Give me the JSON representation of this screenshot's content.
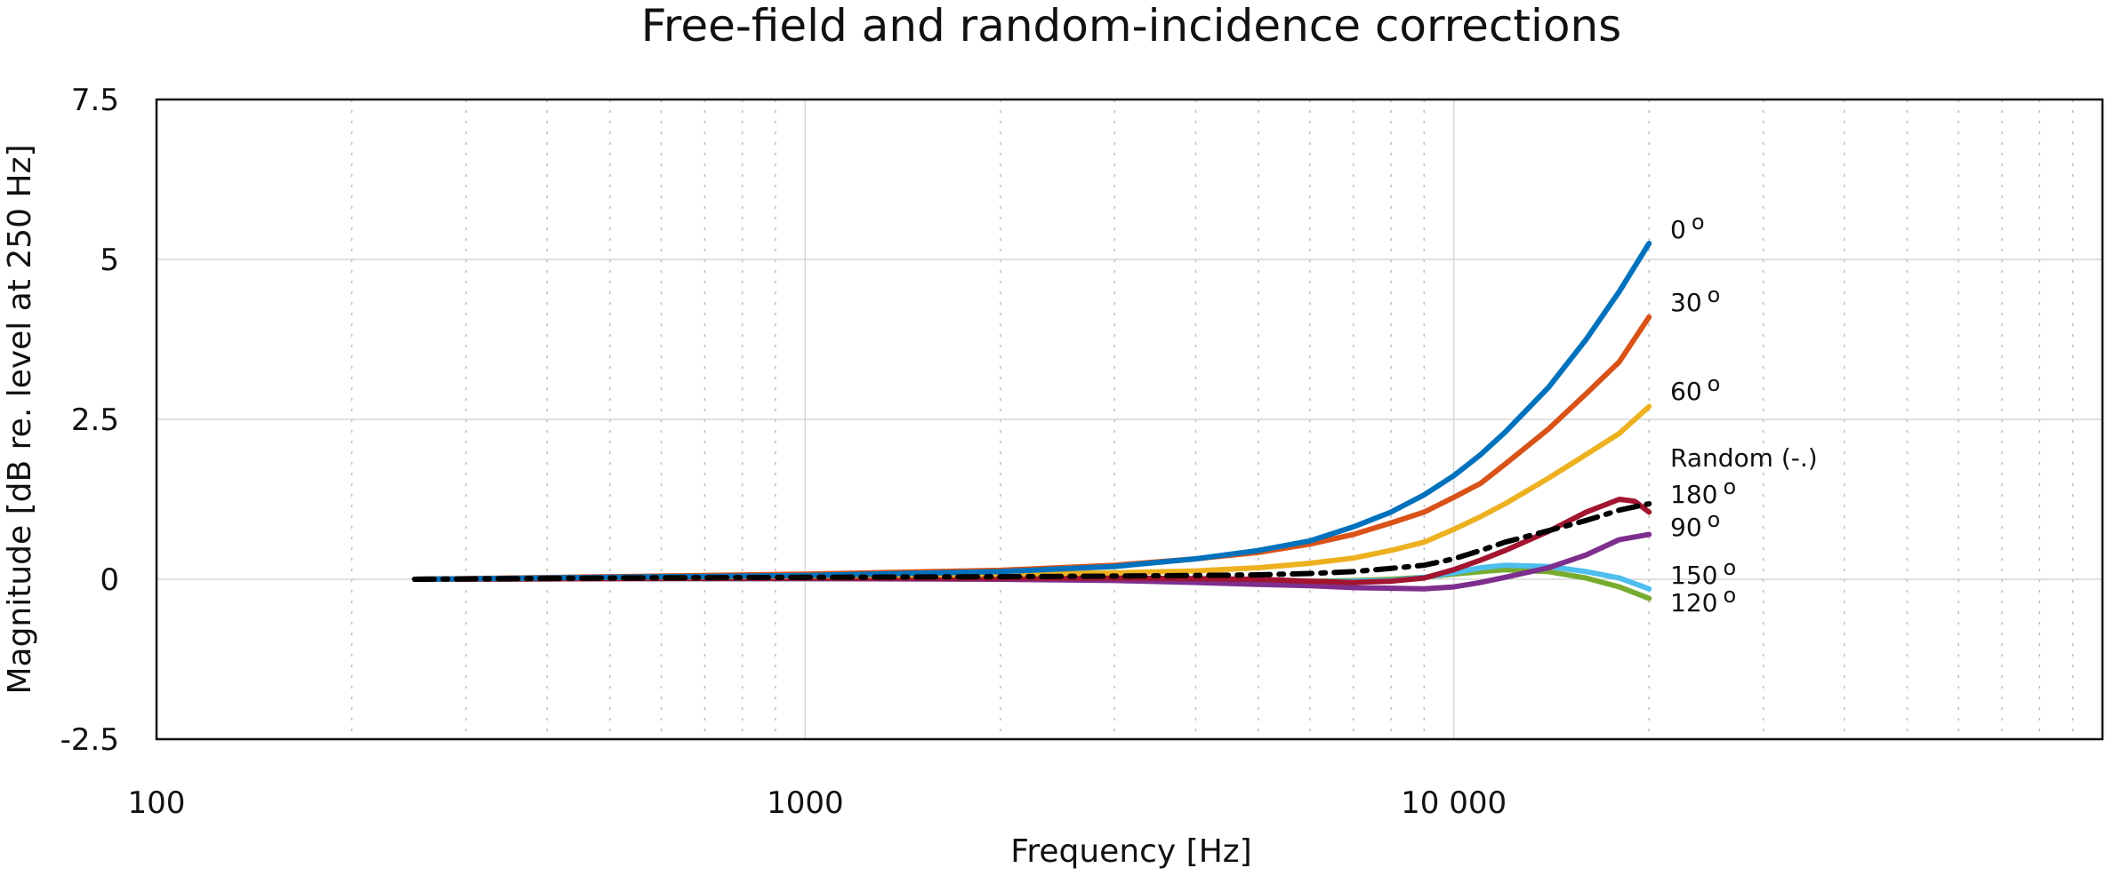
{
  "chart_data": {
    "type": "line",
    "title": "Free-field and random-incidence corrections",
    "xlabel": "Frequency [Hz]",
    "ylabel": "Magnitude [dB re. level at 250 Hz]",
    "xscale": "log",
    "xlim": [
      100,
      100000
    ],
    "ylim": [
      -2.5,
      7.5
    ],
    "xticks": [
      {
        "value": 100,
        "label": "100"
      },
      {
        "value": 1000,
        "label": "1000"
      },
      {
        "value": 10000,
        "label": "10 000"
      }
    ],
    "yticks": [
      {
        "value": 7.5,
        "label": "7.5"
      },
      {
        "value": 5,
        "label": "5"
      },
      {
        "value": 2.5,
        "label": "2.5"
      },
      {
        "value": 0,
        "label": "0"
      },
      {
        "value": -2.5,
        "label": "-2.5"
      }
    ],
    "grid": true,
    "series": [
      {
        "name": "0°",
        "label": "0",
        "deg": "o",
        "color": "#0072BD",
        "dash": "solid",
        "x": [
          250,
          500,
          1000,
          2000,
          3000,
          4000,
          5000,
          6000,
          7000,
          8000,
          9000,
          10000,
          11000,
          12000,
          14000,
          16000,
          18000,
          20000
        ],
        "y": [
          0,
          0.03,
          0.06,
          0.12,
          0.2,
          0.32,
          0.45,
          0.6,
          0.82,
          1.05,
          1.32,
          1.62,
          1.95,
          2.3,
          3.0,
          3.75,
          4.5,
          5.25
        ]
      },
      {
        "name": "30°",
        "label": "30",
        "deg": "o",
        "color": "#D95319",
        "dash": "solid",
        "x": [
          250,
          500,
          1000,
          2000,
          3000,
          4000,
          5000,
          6000,
          7000,
          8000,
          9000,
          10000,
          11000,
          12000,
          14000,
          16000,
          18000,
          20000
        ],
        "y": [
          0,
          0.04,
          0.08,
          0.14,
          0.22,
          0.32,
          0.42,
          0.55,
          0.7,
          0.88,
          1.05,
          1.28,
          1.5,
          1.8,
          2.35,
          2.9,
          3.4,
          4.1
        ]
      },
      {
        "name": "60°",
        "label": "60",
        "deg": "o",
        "color": "#EDB120",
        "dash": "solid",
        "x": [
          250,
          500,
          1000,
          2000,
          3000,
          4000,
          5000,
          6000,
          7000,
          8000,
          9000,
          10000,
          11000,
          12000,
          14000,
          16000,
          18000,
          20000
        ],
        "y": [
          0,
          0.03,
          0.05,
          0.08,
          0.1,
          0.13,
          0.18,
          0.25,
          0.33,
          0.45,
          0.58,
          0.78,
          0.98,
          1.18,
          1.58,
          1.95,
          2.28,
          2.7
        ]
      },
      {
        "name": "Random (-.)",
        "label": "Random (-.)",
        "deg": "",
        "color": "#000000",
        "dash": "dashdot",
        "x": [
          250,
          500,
          1000,
          2000,
          3000,
          4000,
          5000,
          6000,
          7000,
          8000,
          9000,
          10000,
          11000,
          12000,
          14000,
          16000,
          18000,
          20000
        ],
        "y": [
          0,
          0.02,
          0.03,
          0.04,
          0.05,
          0.06,
          0.07,
          0.09,
          0.12,
          0.17,
          0.22,
          0.32,
          0.45,
          0.58,
          0.76,
          0.92,
          1.08,
          1.18
        ]
      },
      {
        "name": "180°",
        "label": "180",
        "deg": "o",
        "color": "#A2142F",
        "dash": "solid",
        "x": [
          250,
          500,
          1000,
          2000,
          3000,
          4000,
          5000,
          6000,
          7000,
          8000,
          9000,
          10000,
          11000,
          12000,
          14000,
          16000,
          18000,
          19000,
          20000
        ],
        "y": [
          0,
          0.01,
          0.02,
          0.02,
          0.02,
          0.01,
          0.0,
          -0.03,
          -0.05,
          -0.03,
          0.02,
          0.15,
          0.3,
          0.45,
          0.75,
          1.05,
          1.25,
          1.22,
          1.05
        ]
      },
      {
        "name": "90°",
        "label": "90",
        "deg": "o",
        "color": "#7E2F8E",
        "dash": "solid",
        "x": [
          250,
          500,
          1000,
          2000,
          3000,
          4000,
          5000,
          6000,
          7000,
          8000,
          9000,
          10000,
          11000,
          12000,
          14000,
          16000,
          18000,
          20000
        ],
        "y": [
          0,
          0.01,
          0.01,
          0.0,
          -0.02,
          -0.05,
          -0.08,
          -0.1,
          -0.13,
          -0.14,
          -0.15,
          -0.12,
          -0.05,
          0.03,
          0.18,
          0.38,
          0.62,
          0.7
        ]
      },
      {
        "name": "150°",
        "label": "150",
        "deg": "o",
        "color": "#4DBEEE",
        "dash": "solid",
        "x": [
          250,
          500,
          1000,
          2000,
          3000,
          4000,
          5000,
          6000,
          7000,
          8000,
          9000,
          10000,
          11000,
          12000,
          14000,
          16000,
          18000,
          20000
        ],
        "y": [
          0,
          0.01,
          0.01,
          0.01,
          0.0,
          -0.02,
          -0.03,
          -0.04,
          -0.03,
          -0.02,
          0.03,
          0.1,
          0.18,
          0.22,
          0.2,
          0.12,
          0.02,
          -0.15
        ]
      },
      {
        "name": "120°",
        "label": "120",
        "deg": "o",
        "color": "#77AC30",
        "dash": "solid",
        "x": [
          250,
          500,
          1000,
          2000,
          3000,
          4000,
          5000,
          6000,
          7000,
          8000,
          9000,
          10000,
          11000,
          12000,
          14000,
          16000,
          18000,
          20000
        ],
        "y": [
          0,
          0.01,
          0.01,
          0.01,
          0.0,
          -0.02,
          -0.03,
          -0.03,
          -0.02,
          0.0,
          0.03,
          0.08,
          0.12,
          0.15,
          0.12,
          0.02,
          -0.12,
          -0.3
        ]
      }
    ]
  }
}
